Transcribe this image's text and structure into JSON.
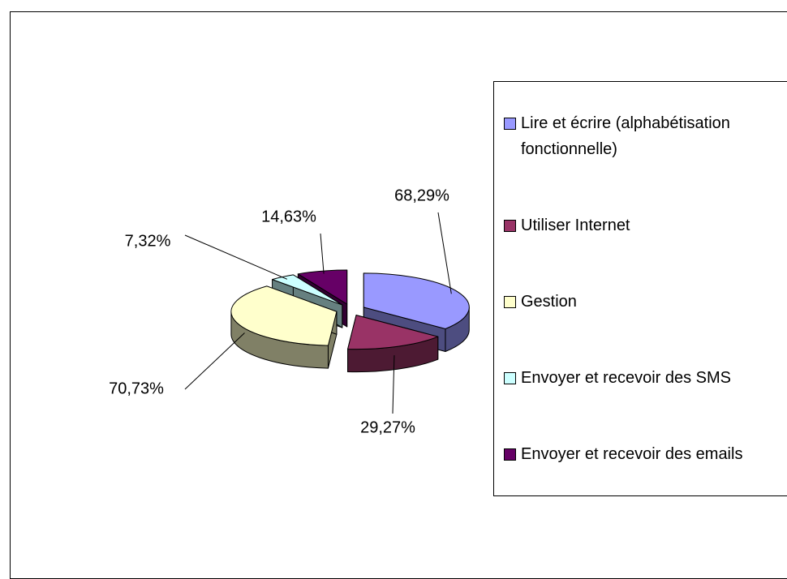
{
  "chart_data": {
    "type": "pie",
    "categories": [
      "Lire et écrire (alphabétisation fonctionnelle)",
      "Utiliser Internet",
      "Gestion",
      "Envoyer et recevoir des SMS",
      "Envoyer et recevoir des emails"
    ],
    "values": [
      68.29,
      29.27,
      70.73,
      7.32,
      14.63
    ],
    "value_labels": [
      "68,29%",
      "29,27%",
      "70,73%",
      "7,32%",
      "14,63%"
    ],
    "colors": [
      "#9999ff",
      "#993366",
      "#ffffcc",
      "#ccffff",
      "#660066"
    ],
    "legend": "right"
  }
}
